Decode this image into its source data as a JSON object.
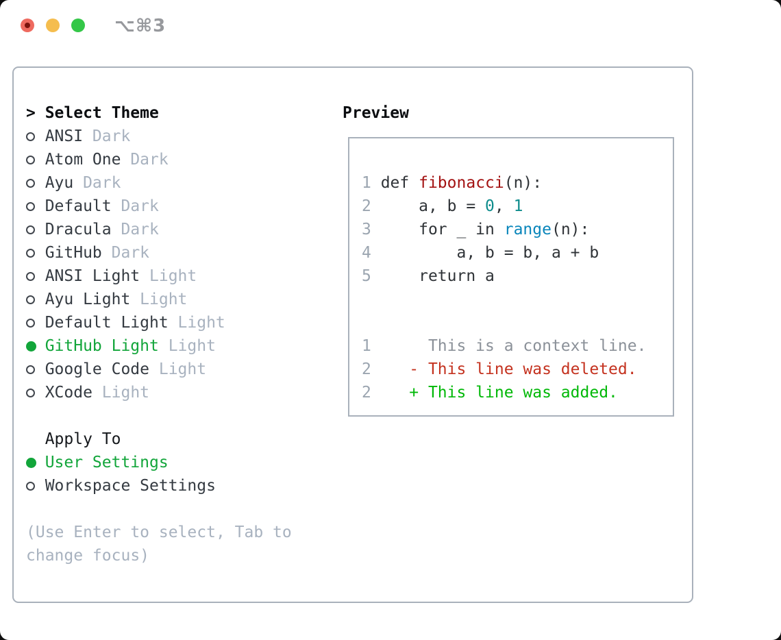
{
  "window": {
    "title": "⌥⌘3",
    "traffic_lights": {
      "close": "close-button",
      "minimize": "minimize-button",
      "zoom": "zoom-button"
    }
  },
  "colors": {
    "selected_green": "#12a53a",
    "added_green": "#00b807",
    "deleted_red": "#c4321f",
    "function_red": "#a31212",
    "number_teal": "#0e8c8c",
    "builtin_blue": "#0a86bb",
    "muted_gray": "#a8b2bf",
    "context_gray": "#8b9199",
    "panel_border": "#a9b1bb"
  },
  "theme_panel": {
    "prompt": ">",
    "title": "Select Theme",
    "themes": [
      {
        "name": "ANSI",
        "tag": "Dark",
        "selected": false
      },
      {
        "name": "Atom One",
        "tag": "Dark",
        "selected": false
      },
      {
        "name": "Ayu",
        "tag": "Dark",
        "selected": false
      },
      {
        "name": "Default",
        "tag": "Dark",
        "selected": false
      },
      {
        "name": "Dracula",
        "tag": "Dark",
        "selected": false
      },
      {
        "name": "GitHub",
        "tag": "Dark",
        "selected": false
      },
      {
        "name": "ANSI Light",
        "tag": "Light",
        "selected": false
      },
      {
        "name": "Ayu Light",
        "tag": "Light",
        "selected": false
      },
      {
        "name": "Default Light",
        "tag": "Light",
        "selected": false
      },
      {
        "name": "GitHub Light",
        "tag": "Light",
        "selected": true
      },
      {
        "name": "Google Code",
        "tag": "Light",
        "selected": false
      },
      {
        "name": "XCode",
        "tag": "Light",
        "selected": false
      }
    ],
    "apply_to": {
      "title": "Apply To",
      "options": [
        {
          "name": "User Settings",
          "selected": true
        },
        {
          "name": "Workspace Settings",
          "selected": false
        }
      ]
    },
    "hint_lines": [
      "(Use Enter to select, Tab to",
      "change focus)"
    ]
  },
  "preview": {
    "title": "Preview",
    "lines": [
      {
        "num": "1",
        "segments": [
          {
            "text": " def ",
            "color": "fg"
          },
          {
            "text": "fibonacci",
            "color": "func"
          },
          {
            "text": "(n):",
            "color": "fg"
          }
        ]
      },
      {
        "num": "2",
        "segments": [
          {
            "text": "     a, b = ",
            "color": "fg"
          },
          {
            "text": "0",
            "color": "num"
          },
          {
            "text": ", ",
            "color": "fg"
          },
          {
            "text": "1",
            "color": "num"
          }
        ]
      },
      {
        "num": "3",
        "segments": [
          {
            "text": "     for _ in ",
            "color": "fg"
          },
          {
            "text": "range",
            "color": "support"
          },
          {
            "text": "(n):",
            "color": "fg"
          }
        ]
      },
      {
        "num": "4",
        "segments": [
          {
            "text": "         a, b = b, a + b",
            "color": "fg"
          }
        ]
      },
      {
        "num": "5",
        "segments": [
          {
            "text": "     return a",
            "color": "fg"
          }
        ]
      },
      {
        "blank": true
      },
      {
        "blank": true
      },
      {
        "num": "1",
        "segments": [
          {
            "text": "      This is a context line.",
            "color": "context"
          }
        ]
      },
      {
        "num": "2",
        "segments": [
          {
            "text": "    - This line was deleted.",
            "color": "deleted"
          }
        ]
      },
      {
        "num": "2",
        "segments": [
          {
            "text": "    + This line was added.",
            "color": "added"
          }
        ]
      }
    ]
  }
}
